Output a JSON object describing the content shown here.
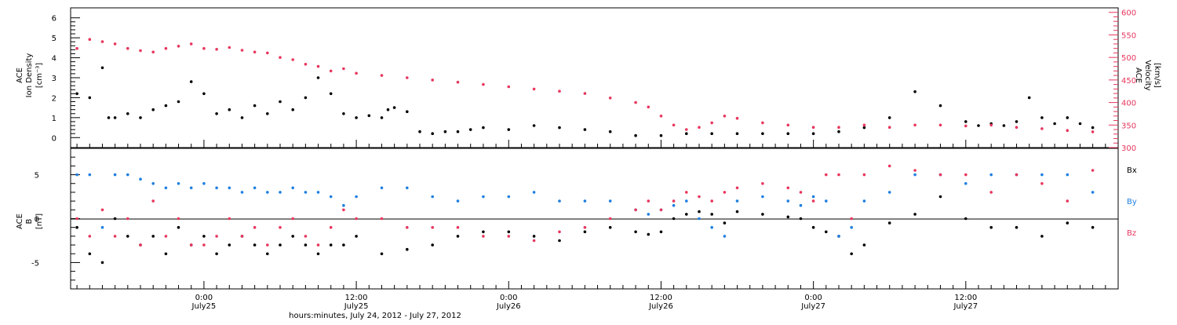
{
  "colors": {
    "density": "#000000",
    "velocity": "#e8365d",
    "bx": "#000000",
    "by": "#1e7fe0",
    "bz": "#e8365d",
    "axis": "#000000",
    "velocity_axis": "#e8365d"
  },
  "chart_data": [
    {
      "type": "scatter",
      "ylabel_left": [
        "ACE",
        "Ion Density",
        "[cm⁻³]"
      ],
      "ylabel_right": [
        "ACE",
        "Velocity",
        "[km/s]"
      ],
      "x_unit": "hours since 2012-07-24 00:00 UT",
      "xlim": [
        13.5,
        96
      ],
      "ylim_left": [
        -0.5,
        6.5
      ],
      "ylim_right": [
        300,
        610
      ],
      "yticks_left": [
        0,
        1,
        2,
        3,
        4,
        5,
        6
      ],
      "yticks_right": [
        300,
        350,
        400,
        450,
        500,
        550,
        600
      ],
      "series": [
        {
          "axis": "left",
          "color": "#000000",
          "x": [
            14,
            15,
            16,
            16.5,
            17,
            18,
            19,
            20,
            21,
            22,
            23,
            24,
            25,
            26,
            27,
            28,
            29,
            30,
            31,
            32,
            33,
            34,
            35,
            36,
            37,
            38,
            38.5,
            39,
            40,
            41,
            42,
            43,
            44,
            45,
            46,
            48,
            50,
            52,
            54,
            56,
            58,
            60,
            62,
            64,
            66,
            68,
            70,
            72,
            74,
            76,
            78,
            80,
            82,
            84,
            85,
            86,
            87,
            88,
            89,
            90,
            91,
            92,
            93,
            94
          ],
          "y": [
            2.2,
            2.0,
            3.5,
            1.0,
            1.0,
            1.2,
            1.0,
            1.4,
            1.6,
            1.8,
            2.8,
            2.2,
            1.2,
            1.4,
            1.0,
            1.6,
            1.2,
            1.8,
            1.4,
            2.0,
            3.0,
            2.2,
            1.2,
            1.0,
            1.1,
            1.0,
            1.4,
            1.5,
            1.3,
            0.3,
            0.2,
            0.3,
            0.3,
            0.4,
            0.5,
            0.4,
            0.6,
            0.5,
            0.4,
            0.3,
            0.1,
            0.1,
            0.2,
            0.2,
            0.2,
            0.2,
            0.2,
            0.2,
            0.3,
            0.5,
            1.0,
            2.3,
            1.6,
            0.8,
            0.6,
            0.7,
            0.6,
            0.8,
            2.0,
            1.0,
            0.7,
            1.0,
            0.7,
            0.5
          ]
        },
        {
          "axis": "right",
          "color": "#e8365d",
          "x": [
            14,
            15,
            16,
            17,
            18,
            19,
            20,
            21,
            22,
            23,
            24,
            25,
            26,
            27,
            28,
            29,
            30,
            31,
            32,
            33,
            34,
            35,
            36,
            38,
            40,
            42,
            44,
            46,
            48,
            50,
            52,
            54,
            56,
            58,
            59,
            60,
            61,
            62,
            63,
            64,
            65,
            66,
            68,
            70,
            72,
            74,
            76,
            78,
            80,
            82,
            84,
            86,
            88,
            90,
            92,
            94
          ],
          "y": [
            520,
            540,
            535,
            530,
            520,
            515,
            512,
            520,
            525,
            530,
            520,
            518,
            522,
            516,
            512,
            510,
            500,
            495,
            485,
            480,
            470,
            475,
            465,
            460,
            455,
            450,
            445,
            440,
            435,
            430,
            425,
            420,
            410,
            400,
            390,
            370,
            350,
            340,
            345,
            355,
            370,
            365,
            355,
            350,
            345,
            345,
            350,
            345,
            350,
            350,
            348,
            350,
            345,
            342,
            338,
            335
          ]
        }
      ]
    },
    {
      "type": "scatter",
      "ylabel_left": [
        "ACE",
        "B",
        "[nT]"
      ],
      "xlim": [
        13.5,
        96
      ],
      "ylim": [
        -8,
        8
      ],
      "yticks": [
        -5,
        0,
        5
      ],
      "legend": "right",
      "series": [
        {
          "name": "Bx",
          "color": "#000000",
          "x": [
            14,
            15,
            16,
            17,
            18,
            19,
            20,
            21,
            22,
            23,
            24,
            25,
            26,
            27,
            28,
            29,
            30,
            31,
            32,
            33,
            34,
            35,
            36,
            38,
            40,
            42,
            44,
            46,
            48,
            50,
            52,
            54,
            56,
            58,
            59,
            60,
            61,
            62,
            63,
            64,
            65,
            66,
            68,
            70,
            71,
            72,
            73,
            74,
            75,
            76,
            78,
            80,
            82,
            84,
            86,
            88,
            90,
            92,
            94
          ],
          "y": [
            -1,
            -4,
            -5,
            0,
            -2,
            -3,
            -2,
            -4,
            -1,
            -3,
            -2,
            -4,
            -3,
            -2,
            -3,
            -4,
            -3,
            -2,
            -3,
            -4,
            -3,
            -3,
            -2,
            -4,
            -3.5,
            -3,
            -2,
            -1.5,
            -1.5,
            -2,
            -2.5,
            -1.5,
            -1,
            -1.5,
            -1.8,
            -1.5,
            0,
            0.5,
            0.8,
            0.5,
            -0.5,
            0.8,
            0.5,
            0.2,
            0,
            -1,
            -1.5,
            -2,
            -4,
            -3,
            -0.5,
            0.5,
            2.5,
            0,
            -1,
            -1,
            -2,
            -0.5,
            -1
          ]
        },
        {
          "name": "By",
          "color": "#1e7fe0",
          "x": [
            14,
            15,
            16,
            17,
            18,
            19,
            20,
            21,
            22,
            23,
            24,
            25,
            26,
            27,
            28,
            29,
            30,
            31,
            32,
            33,
            34,
            35,
            36,
            38,
            40,
            42,
            44,
            46,
            48,
            50,
            52,
            54,
            56,
            58,
            59,
            60,
            61,
            62,
            63,
            64,
            65,
            66,
            68,
            70,
            71,
            72,
            73,
            74,
            75,
            76,
            78,
            80,
            82,
            84,
            86,
            88,
            90,
            92,
            94
          ],
          "y": [
            5,
            5,
            -1,
            5,
            5,
            4.5,
            4,
            3.5,
            4,
            3.5,
            4,
            3.5,
            3.5,
            3,
            3.5,
            3,
            3,
            3.5,
            3,
            3,
            2.5,
            1.5,
            2.5,
            3.5,
            3.5,
            2.5,
            2,
            2.5,
            2.5,
            3,
            2,
            2,
            2,
            1,
            0.5,
            1,
            1.5,
            2,
            0,
            -1,
            -2,
            2,
            2.5,
            2,
            1.5,
            2.5,
            2,
            -2,
            -1,
            2,
            3,
            5,
            5,
            4,
            5,
            5,
            5,
            5,
            3
          ]
        },
        {
          "name": "Bz",
          "color": "#e8365d",
          "x": [
            14,
            15,
            16,
            17,
            18,
            19,
            20,
            21,
            22,
            23,
            24,
            25,
            26,
            27,
            28,
            29,
            30,
            31,
            32,
            33,
            34,
            35,
            36,
            38,
            40,
            42,
            44,
            46,
            48,
            50,
            52,
            54,
            56,
            58,
            59,
            60,
            61,
            62,
            63,
            64,
            65,
            66,
            68,
            70,
            71,
            72,
            73,
            74,
            75,
            76,
            78,
            80,
            82,
            84,
            86,
            88,
            90,
            92,
            94
          ],
          "y": [
            0,
            -2,
            1,
            -2,
            0,
            -3,
            2,
            -2,
            0,
            -3,
            -3,
            -2,
            0,
            -2,
            -1,
            -3,
            -1,
            0,
            -2,
            -3,
            -1,
            1,
            0,
            0,
            -1,
            -1,
            -1,
            -2,
            -2,
            -2.5,
            -1.5,
            -1,
            0,
            1,
            2,
            1,
            2,
            3,
            2.5,
            2,
            3,
            3.5,
            4,
            3.5,
            3,
            2,
            5,
            5,
            0,
            5,
            6,
            5.5,
            5,
            5,
            3,
            5,
            4,
            2,
            5.5
          ]
        }
      ]
    }
  ],
  "x_axis": {
    "ticks": [
      {
        "hour": 24,
        "time": "0:00",
        "date": "July25"
      },
      {
        "hour": 36,
        "time": "12:00",
        "date": "July25"
      },
      {
        "hour": 48,
        "time": "0:00",
        "date": "July26"
      },
      {
        "hour": 60,
        "time": "12:00",
        "date": "July26"
      },
      {
        "hour": 72,
        "time": "0:00",
        "date": "July27"
      },
      {
        "hour": 84,
        "time": "12:00",
        "date": "July27"
      }
    ],
    "label": "hours:minutes, July 24, 2012 - July 27, 2012"
  },
  "legend": {
    "bx": "Bx",
    "by": "By",
    "bz": "Bz"
  }
}
